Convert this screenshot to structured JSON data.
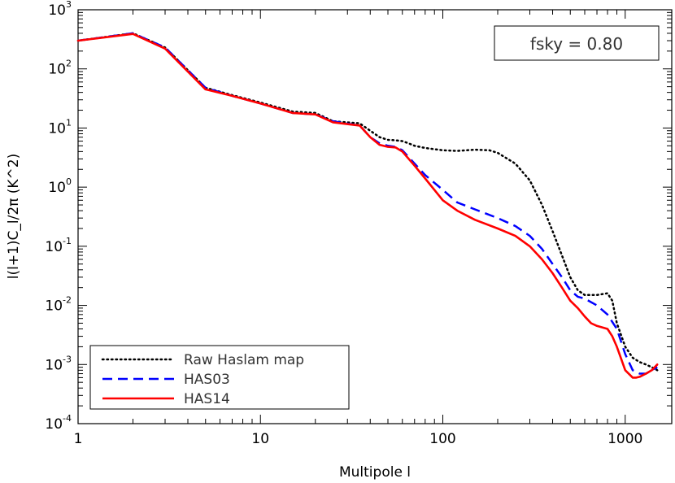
{
  "chart_data": {
    "type": "line",
    "title": "",
    "xlabel": "Multipole l",
    "ylabel": "l(l+1)C_l/2π (K^2)",
    "xscale": "log",
    "yscale": "log",
    "xlim": [
      1,
      1800
    ],
    "ylim": [
      0.0001,
      1000
    ],
    "x_ticks": [
      {
        "value": 1,
        "label": "1"
      },
      {
        "value": 10,
        "label": "10"
      },
      {
        "value": 100,
        "label": "100"
      },
      {
        "value": 1000,
        "label": "1000"
      }
    ],
    "y_ticks": [
      {
        "value": 0.0001,
        "base": "10",
        "exp": "-4"
      },
      {
        "value": 0.001,
        "base": "10",
        "exp": "-3"
      },
      {
        "value": 0.01,
        "base": "10",
        "exp": "-2"
      },
      {
        "value": 0.1,
        "base": "10",
        "exp": "-1"
      },
      {
        "value": 1,
        "base": "10",
        "exp": "0"
      },
      {
        "value": 10,
        "base": "10",
        "exp": "1"
      },
      {
        "value": 100,
        "base": "10",
        "exp": "2"
      },
      {
        "value": 1000,
        "base": "10",
        "exp": "3"
      }
    ],
    "annotation": "fsky = 0.80",
    "legend": {
      "position": "bottom-left"
    },
    "series": [
      {
        "name": "Raw Haslam map",
        "color": "#000000",
        "style": "dotted",
        "x": [
          1,
          2,
          3,
          5,
          7,
          10,
          15,
          20,
          25,
          35,
          40,
          45,
          50,
          55,
          60,
          65,
          70,
          80,
          100,
          120,
          150,
          180,
          200,
          250,
          300,
          350,
          400,
          450,
          500,
          550,
          600,
          700,
          800,
          850,
          900,
          1000,
          1100,
          1200,
          1300,
          1400,
          1500
        ],
        "y": [
          300,
          400,
          230,
          48,
          36,
          27,
          19,
          18,
          13,
          12,
          9,
          7,
          6.3,
          6.2,
          6.0,
          5.5,
          5.0,
          4.6,
          4.2,
          4.1,
          4.3,
          4.2,
          3.8,
          2.5,
          1.3,
          0.5,
          0.18,
          0.07,
          0.03,
          0.018,
          0.015,
          0.015,
          0.016,
          0.012,
          0.005,
          0.002,
          0.0013,
          0.0011,
          0.001,
          0.0009,
          0.0008
        ]
      },
      {
        "name": "HAS03",
        "color": "#0000ff",
        "style": "dashed",
        "x": [
          1,
          2,
          3,
          5,
          7,
          10,
          15,
          20,
          25,
          35,
          40,
          45,
          50,
          55,
          60,
          70,
          80,
          100,
          120,
          150,
          200,
          250,
          300,
          350,
          400,
          450,
          500,
          550,
          600,
          700,
          800,
          900,
          1000,
          1100,
          1200,
          1300,
          1400,
          1500
        ],
        "y": [
          300,
          400,
          230,
          48,
          35,
          26,
          18,
          17,
          13,
          11,
          7,
          5.5,
          5.0,
          4.8,
          4.2,
          2.5,
          1.6,
          0.9,
          0.55,
          0.42,
          0.3,
          0.22,
          0.15,
          0.09,
          0.05,
          0.03,
          0.018,
          0.014,
          0.013,
          0.01,
          0.007,
          0.004,
          0.0015,
          0.0008,
          0.0007,
          0.0007,
          0.0008,
          0.0009
        ]
      },
      {
        "name": "HAS14",
        "color": "#ff0000",
        "style": "solid",
        "x": [
          1,
          2,
          3,
          5,
          7,
          10,
          15,
          20,
          25,
          35,
          40,
          45,
          50,
          55,
          60,
          70,
          80,
          100,
          120,
          150,
          200,
          250,
          300,
          350,
          400,
          450,
          500,
          550,
          600,
          650,
          700,
          800,
          850,
          900,
          1000,
          1100,
          1150,
          1200,
          1300,
          1400,
          1500
        ],
        "y": [
          300,
          390,
          220,
          45,
          35,
          26,
          18,
          17,
          12.5,
          11,
          7,
          5.2,
          4.8,
          4.7,
          4.0,
          2.3,
          1.4,
          0.6,
          0.4,
          0.28,
          0.2,
          0.15,
          0.1,
          0.06,
          0.035,
          0.02,
          0.012,
          0.009,
          0.0065,
          0.005,
          0.0045,
          0.004,
          0.003,
          0.002,
          0.0008,
          0.0006,
          0.0006,
          0.00062,
          0.0007,
          0.0008,
          0.001
        ]
      }
    ]
  }
}
